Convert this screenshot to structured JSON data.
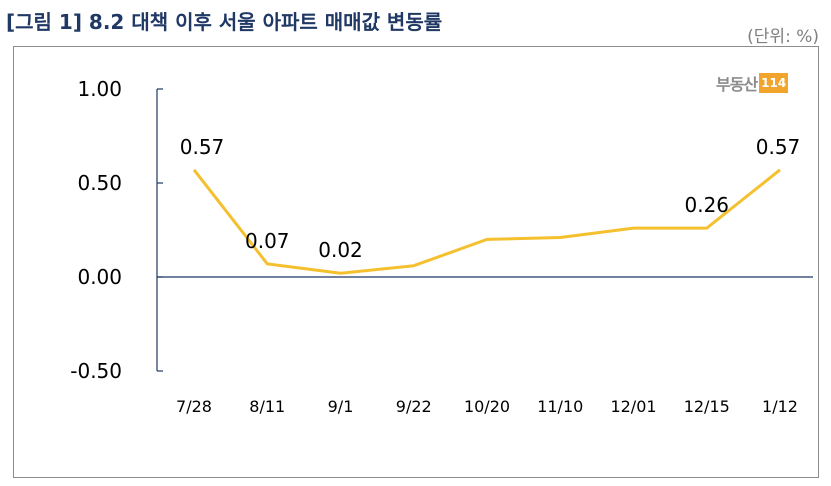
{
  "header": {
    "title": "[그림 1] 8.2 대책 이후 서울 아파트 매매값 변동률",
    "unit": "(단위: %)"
  },
  "logo": {
    "text": "부동산",
    "box": "114"
  },
  "colors": {
    "series": "#f5c02e",
    "axis": "#1f3864",
    "title": "#1f3864"
  },
  "chart_data": {
    "type": "line",
    "title": "[그림 1] 8.2 대책 이후 서울 아파트 매매값 변동률",
    "xlabel": "",
    "ylabel": "",
    "ylim": [
      -0.5,
      1.0
    ],
    "yticks": [
      1.0,
      0.5,
      0.0,
      -0.5
    ],
    "ytick_labels": [
      "1.00",
      "0.50",
      "0.00",
      "-0.50"
    ],
    "categories": [
      "7/28",
      "8/11",
      "9/1",
      "9/22",
      "10/20",
      "11/10",
      "12/01",
      "12/15",
      "1/12"
    ],
    "series": [
      {
        "values": [
          0.57,
          0.07,
          0.02,
          0.06,
          0.2,
          0.21,
          0.26,
          0.26,
          0.57
        ],
        "data_labels": [
          "0.57",
          "0.07",
          "0.02",
          null,
          null,
          null,
          null,
          "0.26",
          "0.57"
        ]
      }
    ],
    "grid": false,
    "legend": "none"
  }
}
